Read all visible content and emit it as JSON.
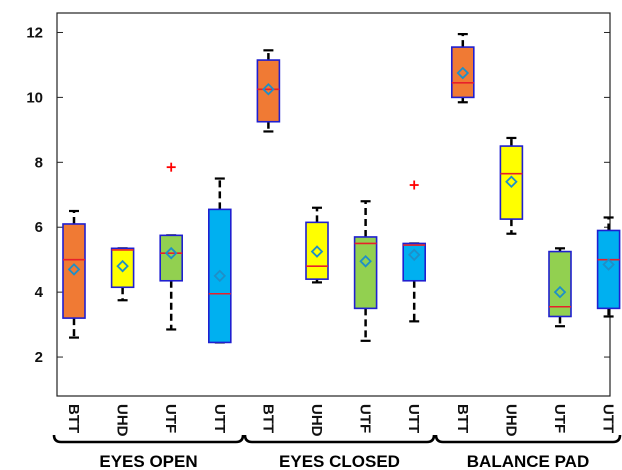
{
  "chart_data": {
    "type": "box",
    "ylim": [
      0.8,
      12.6
    ],
    "yticks": [
      2,
      4,
      6,
      8,
      10,
      12
    ],
    "groups": [
      {
        "label": "EYES OPEN",
        "categories": [
          "BTT",
          "UHD",
          "UTF",
          "UTT"
        ]
      },
      {
        "label": "EYES CLOSED",
        "categories": [
          "BTT",
          "UHD",
          "UTF",
          "UTT"
        ]
      },
      {
        "label": "BALANCE PAD",
        "categories": [
          "BTT",
          "UHD",
          "UTF",
          "UTT"
        ]
      }
    ],
    "boxes": [
      {
        "category": "BTT",
        "group": "EYES OPEN",
        "whisker_low": 2.6,
        "q1": 3.2,
        "median": 5.0,
        "q3": 6.1,
        "whisker_high": 6.5,
        "mean": 4.7,
        "outliers": [],
        "color": "#F07A34"
      },
      {
        "category": "UHD",
        "group": "EYES OPEN",
        "whisker_low": 3.75,
        "q1": 4.15,
        "median": 5.3,
        "q3": 5.35,
        "whisker_high": 5.35,
        "mean": 4.8,
        "outliers": [],
        "color": "#FFFF00"
      },
      {
        "category": "UTF",
        "group": "EYES OPEN",
        "whisker_low": 2.85,
        "q1": 4.35,
        "median": 5.2,
        "q3": 5.75,
        "whisker_high": 5.75,
        "mean": 5.2,
        "outliers": [
          7.85
        ],
        "color": "#92D050"
      },
      {
        "category": "UTT",
        "group": "EYES OPEN",
        "whisker_low": 2.45,
        "q1": 2.45,
        "median": 3.95,
        "q3": 6.55,
        "whisker_high": 7.5,
        "mean": 4.5,
        "outliers": [],
        "color": "#00B0F0"
      },
      {
        "category": "BTT",
        "group": "EYES CLOSED",
        "whisker_low": 8.95,
        "q1": 9.25,
        "median": 10.25,
        "q3": 11.15,
        "whisker_high": 11.45,
        "mean": 10.25,
        "outliers": [],
        "color": "#F07A34"
      },
      {
        "category": "UHD",
        "group": "EYES CLOSED",
        "whisker_low": 4.3,
        "q1": 4.4,
        "median": 4.8,
        "q3": 6.15,
        "whisker_high": 6.6,
        "mean": 5.25,
        "outliers": [],
        "color": "#FFFF00"
      },
      {
        "category": "UTF",
        "group": "EYES CLOSED",
        "whisker_low": 2.5,
        "q1": 3.5,
        "median": 5.5,
        "q3": 5.7,
        "whisker_high": 6.8,
        "mean": 4.95,
        "outliers": [],
        "color": "#92D050"
      },
      {
        "category": "UTT",
        "group": "EYES CLOSED",
        "whisker_low": 3.1,
        "q1": 4.35,
        "median": 5.45,
        "q3": 5.5,
        "whisker_high": 5.5,
        "mean": 5.15,
        "outliers": [
          7.3
        ],
        "color": "#00B0F0"
      },
      {
        "category": "BTT",
        "group": "BALANCE PAD",
        "whisker_low": 9.85,
        "q1": 10.0,
        "median": 10.45,
        "q3": 11.55,
        "whisker_high": 11.95,
        "mean": 10.75,
        "outliers": [],
        "color": "#F07A34"
      },
      {
        "category": "UHD",
        "group": "BALANCE PAD",
        "whisker_low": 5.8,
        "q1": 6.25,
        "median": 7.65,
        "q3": 8.5,
        "whisker_high": 8.75,
        "mean": 7.4,
        "outliers": [],
        "color": "#FFFF00"
      },
      {
        "category": "UTF",
        "group": "BALANCE PAD",
        "whisker_low": 2.95,
        "q1": 3.25,
        "median": 3.55,
        "q3": 5.25,
        "whisker_high": 5.35,
        "mean": 4.0,
        "outliers": [],
        "color": "#92D050"
      },
      {
        "category": "UTT",
        "group": "BALANCE PAD",
        "whisker_low": 3.25,
        "q1": 3.5,
        "median": 5.0,
        "q3": 5.9,
        "whisker_high": 6.3,
        "mean": 4.85,
        "outliers": [],
        "color": "#00B0F0"
      }
    ],
    "colors": {
      "box_edge": "#1F1FD0",
      "median": "#E8202A",
      "mean_marker": "#1E8FC8",
      "outlier": "#FF0000"
    },
    "grid": false
  }
}
